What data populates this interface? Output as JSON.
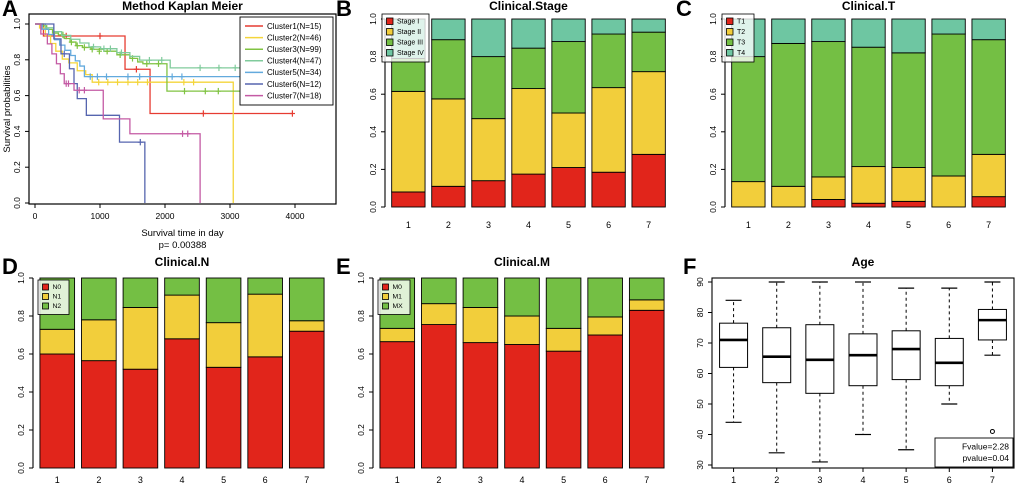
{
  "figure_title": "Multi-panel clinical figure (Kaplan Meier survival, clinical stage distributions, age boxplot)",
  "chart_data": [
    {
      "id": "kaplan-meier",
      "panel_letter": "A",
      "type": "line",
      "subtype": "kaplan-meier-step",
      "title": "Method Kaplan Meier",
      "xlabel": "Survival time in day",
      "ylabel": "Survival probabilities",
      "p_value_text": "p= 0.00388",
      "xlim": [
        0,
        4600
      ],
      "ylim": [
        0,
        1
      ],
      "xticks": [
        0,
        1000,
        2000,
        3000,
        4000
      ],
      "yticks": [
        "0.0",
        "0.2",
        "0.4",
        "0.6",
        "0.8",
        "1.0"
      ],
      "legend_position": "top-right",
      "grid": false,
      "series": [
        {
          "name": "Cluster1(N=15)",
          "color": "#e63c32",
          "steps": [
            [
              0,
              1
            ],
            [
              130,
              0.933
            ],
            [
              1385,
              0.747
            ],
            [
              1770,
              0.5
            ],
            [
              3970,
              0.5
            ]
          ],
          "censors": [
            [
              480,
              0.933
            ],
            [
              1000,
              0.933
            ],
            [
              1560,
              0.747
            ],
            [
              2590,
              0.5
            ],
            [
              3960,
              0.5
            ]
          ]
        },
        {
          "name": "Cluster2(N=46)",
          "color": "#f4d53b",
          "steps": [
            [
              0,
              1
            ],
            [
              70,
              0.978
            ],
            [
              160,
              0.935
            ],
            [
              240,
              0.891
            ],
            [
              320,
              0.848
            ],
            [
              420,
              0.804
            ],
            [
              520,
              0.783
            ],
            [
              650,
              0.739
            ],
            [
              780,
              0.717
            ],
            [
              880,
              0.675
            ],
            [
              3050,
              0
            ]
          ],
          "censors": [
            [
              980,
              0.675
            ],
            [
              1120,
              0.675
            ],
            [
              1270,
              0.675
            ],
            [
              1430,
              0.675
            ],
            [
              1580,
              0.675
            ],
            [
              1730,
              0.675
            ],
            [
              2290,
              0.675
            ],
            [
              2440,
              0.675
            ]
          ]
        },
        {
          "name": "Cluster3(N=99)",
          "color": "#80c342",
          "steps": [
            [
              0,
              1
            ],
            [
              90,
              0.99
            ],
            [
              180,
              0.97
            ],
            [
              270,
              0.949
            ],
            [
              360,
              0.939
            ],
            [
              450,
              0.919
            ],
            [
              540,
              0.899
            ],
            [
              630,
              0.879
            ],
            [
              730,
              0.869
            ],
            [
              860,
              0.859
            ],
            [
              1060,
              0.848
            ],
            [
              1260,
              0.828
            ],
            [
              1460,
              0.808
            ],
            [
              1580,
              0.788
            ],
            [
              1660,
              0.778
            ],
            [
              2030,
              0.625
            ],
            [
              3200,
              0.625
            ]
          ],
          "censors": [
            [
              430,
              0.939
            ],
            [
              560,
              0.899
            ],
            [
              650,
              0.879
            ],
            [
              760,
              0.869
            ],
            [
              880,
              0.859
            ],
            [
              990,
              0.848
            ],
            [
              1110,
              0.848
            ],
            [
              1310,
              0.828
            ],
            [
              1500,
              0.808
            ],
            [
              1720,
              0.778
            ],
            [
              1900,
              0.778
            ],
            [
              2300,
              0.625
            ],
            [
              2620,
              0.625
            ],
            [
              2820,
              0.625
            ],
            [
              3190,
              0.625
            ]
          ]
        },
        {
          "name": "Cluster4(N=47)",
          "color": "#80cb9c",
          "steps": [
            [
              0,
              1
            ],
            [
              160,
              0.979
            ],
            [
              290,
              0.957
            ],
            [
              410,
              0.936
            ],
            [
              550,
              0.915
            ],
            [
              690,
              0.894
            ],
            [
              830,
              0.872
            ],
            [
              1010,
              0.862
            ],
            [
              1260,
              0.84
            ],
            [
              1460,
              0.819
            ],
            [
              1610,
              0.798
            ],
            [
              2080,
              0.755
            ],
            [
              3250,
              0.755
            ]
          ],
          "censors": [
            [
              900,
              0.872
            ],
            [
              1060,
              0.862
            ],
            [
              1160,
              0.862
            ],
            [
              1330,
              0.84
            ],
            [
              1760,
              0.798
            ],
            [
              1950,
              0.798
            ],
            [
              2540,
              0.755
            ],
            [
              2830,
              0.755
            ],
            [
              3080,
              0.755
            ],
            [
              3240,
              0.755
            ]
          ]
        },
        {
          "name": "Cluster5(N=34)",
          "color": "#63aadd",
          "steps": [
            [
              0,
              1
            ],
            [
              110,
              0.971
            ],
            [
              210,
              0.941
            ],
            [
              300,
              0.912
            ],
            [
              380,
              0.882
            ],
            [
              460,
              0.853
            ],
            [
              550,
              0.824
            ],
            [
              620,
              0.794
            ],
            [
              690,
              0.765
            ],
            [
              760,
              0.706
            ],
            [
              3330,
              0.706
            ]
          ],
          "censors": [
            [
              850,
              0.706
            ],
            [
              960,
              0.706
            ],
            [
              1100,
              0.706
            ],
            [
              1430,
              0.706
            ],
            [
              1610,
              0.706
            ],
            [
              2110,
              0.706
            ],
            [
              2260,
              0.706
            ],
            [
              3320,
              0.706
            ]
          ]
        },
        {
          "name": "Cluster6(N=12)",
          "color": "#5665af",
          "steps": [
            [
              0,
              1
            ],
            [
              290,
              0.917
            ],
            [
              400,
              0.833
            ],
            [
              530,
              0.75
            ],
            [
              600,
              0.667
            ],
            [
              650,
              0.583
            ],
            [
              790,
              0.49
            ],
            [
              1300,
              0.34
            ],
            [
              1690,
              0
            ]
          ],
          "censors": [
            [
              450,
              0.833
            ],
            [
              1620,
              0.34
            ]
          ]
        },
        {
          "name": "Cluster7(N=18)",
          "color": "#c45aa4",
          "steps": [
            [
              0,
              1
            ],
            [
              90,
              0.944
            ],
            [
              190,
              0.889
            ],
            [
              260,
              0.833
            ],
            [
              330,
              0.778
            ],
            [
              390,
              0.722
            ],
            [
              450,
              0.667
            ],
            [
              600,
              0.63
            ],
            [
              1050,
              0.47
            ],
            [
              1460,
              0.387
            ],
            [
              2540,
              0
            ]
          ],
          "censors": [
            [
              480,
              0.667
            ],
            [
              515,
              0.667
            ],
            [
              680,
              0.63
            ],
            [
              760,
              0.63
            ],
            [
              2270,
              0.387
            ],
            [
              2350,
              0.387
            ]
          ]
        }
      ]
    },
    {
      "id": "clinical-stage",
      "panel_letter": "B",
      "type": "bar",
      "stacked": true,
      "title": "Clinical.Stage",
      "categories": [
        "1",
        "2",
        "3",
        "4",
        "5",
        "6",
        "7"
      ],
      "yticks": [
        "0.0",
        "0.2",
        "0.4",
        "0.6",
        "0.8",
        "1.0"
      ],
      "ylim": [
        0,
        1
      ],
      "legend_position": "top-left",
      "series": [
        {
          "name": "Stage I",
          "color": "#e1251b",
          "values": [
            0.08,
            0.11,
            0.14,
            0.175,
            0.21,
            0.185,
            0.28
          ]
        },
        {
          "name": "Stage II",
          "color": "#f2ce3b",
          "values": [
            0.535,
            0.465,
            0.33,
            0.455,
            0.29,
            0.45,
            0.44
          ]
        },
        {
          "name": "Stage III",
          "color": "#74bf44",
          "values": [
            0.175,
            0.315,
            0.33,
            0.215,
            0.38,
            0.285,
            0.21
          ]
        },
        {
          "name": "Stage IV",
          "color": "#6ec6a2",
          "values": [
            0.21,
            0.11,
            0.2,
            0.155,
            0.12,
            0.08,
            0.07
          ]
        }
      ]
    },
    {
      "id": "clinical-t",
      "panel_letter": "C",
      "type": "bar",
      "stacked": true,
      "title": "Clinical.T",
      "categories": [
        "1",
        "2",
        "3",
        "4",
        "5",
        "6",
        "7"
      ],
      "yticks": [
        "0.0",
        "0.2",
        "0.4",
        "0.6",
        "0.8",
        "1.0"
      ],
      "ylim": [
        0,
        1
      ],
      "legend_position": "top-left",
      "series": [
        {
          "name": "T1",
          "color": "#e1251b",
          "values": [
            0,
            0,
            0.04,
            0.02,
            0.03,
            0,
            0.055
          ]
        },
        {
          "name": "T2",
          "color": "#f2ce3b",
          "values": [
            0.135,
            0.11,
            0.12,
            0.195,
            0.18,
            0.165,
            0.225
          ]
        },
        {
          "name": "T3",
          "color": "#74bf44",
          "values": [
            0.665,
            0.76,
            0.72,
            0.635,
            0.61,
            0.755,
            0.61
          ]
        },
        {
          "name": "T4",
          "color": "#6ec6a2",
          "values": [
            0.2,
            0.13,
            0.12,
            0.15,
            0.18,
            0.08,
            0.11
          ]
        }
      ]
    },
    {
      "id": "clinical-n",
      "panel_letter": "D",
      "type": "bar",
      "stacked": true,
      "title": "Clinical.N",
      "categories": [
        "1",
        "2",
        "3",
        "4",
        "5",
        "6",
        "7"
      ],
      "yticks": [
        "0.0",
        "0.2",
        "0.4",
        "0.6",
        "0.8",
        "1.0"
      ],
      "ylim": [
        0,
        1
      ],
      "legend_position": "top-left",
      "series": [
        {
          "name": "N0",
          "color": "#e1251b",
          "values": [
            0.6,
            0.565,
            0.52,
            0.68,
            0.53,
            0.585,
            0.72
          ]
        },
        {
          "name": "N1",
          "color": "#f2ce3b",
          "values": [
            0.13,
            0.215,
            0.325,
            0.23,
            0.235,
            0.33,
            0.055
          ]
        },
        {
          "name": "N2",
          "color": "#74bf44",
          "values": [
            0.27,
            0.22,
            0.155,
            0.09,
            0.235,
            0.085,
            0.225
          ]
        }
      ]
    },
    {
      "id": "clinical-m",
      "panel_letter": "E",
      "type": "bar",
      "stacked": true,
      "title": "Clinical.M",
      "categories": [
        "1",
        "2",
        "3",
        "4",
        "5",
        "6",
        "7"
      ],
      "yticks": [
        "0.0",
        "0.2",
        "0.4",
        "0.6",
        "0.8",
        "1.0"
      ],
      "ylim": [
        0,
        1
      ],
      "legend_position": "top-left",
      "series": [
        {
          "name": "M0",
          "color": "#e1251b",
          "values": [
            0.665,
            0.755,
            0.66,
            0.65,
            0.615,
            0.7,
            0.83
          ]
        },
        {
          "name": "M1",
          "color": "#f2ce3b",
          "values": [
            0.07,
            0.11,
            0.185,
            0.15,
            0.12,
            0.095,
            0.055
          ]
        },
        {
          "name": "MX",
          "color": "#74bf44",
          "values": [
            0.265,
            0.135,
            0.155,
            0.2,
            0.265,
            0.205,
            0.115
          ]
        }
      ]
    },
    {
      "id": "age",
      "panel_letter": "F",
      "type": "box",
      "title": "Age",
      "categories": [
        "1",
        "2",
        "3",
        "4",
        "5",
        "6",
        "7"
      ],
      "yticks": [
        30,
        40,
        50,
        60,
        70,
        80,
        90
      ],
      "ylim": [
        28,
        92
      ],
      "annotation_lines": [
        "Fvalue=2.28",
        "pvalue=0.04"
      ],
      "boxes": [
        {
          "whisker_low": 44,
          "q1": 62,
          "median": 71,
          "q3": 76.5,
          "whisker_high": 84,
          "outliers": []
        },
        {
          "whisker_low": 34,
          "q1": 57,
          "median": 65.5,
          "q3": 75,
          "whisker_high": 90,
          "outliers": []
        },
        {
          "whisker_low": 31,
          "q1": 53.5,
          "median": 64.5,
          "q3": 76,
          "whisker_high": 90,
          "outliers": []
        },
        {
          "whisker_low": 40,
          "q1": 56,
          "median": 66,
          "q3": 73,
          "whisker_high": 90,
          "outliers": []
        },
        {
          "whisker_low": 35,
          "q1": 58,
          "median": 68,
          "q3": 74,
          "whisker_high": 88,
          "outliers": []
        },
        {
          "whisker_low": 50,
          "q1": 56,
          "median": 63.5,
          "q3": 71.5,
          "whisker_high": 88,
          "outliers": []
        },
        {
          "whisker_low": 66,
          "q1": 71,
          "median": 77.5,
          "q3": 81,
          "whisker_high": 90,
          "outliers": [
            41
          ]
        }
      ]
    }
  ]
}
